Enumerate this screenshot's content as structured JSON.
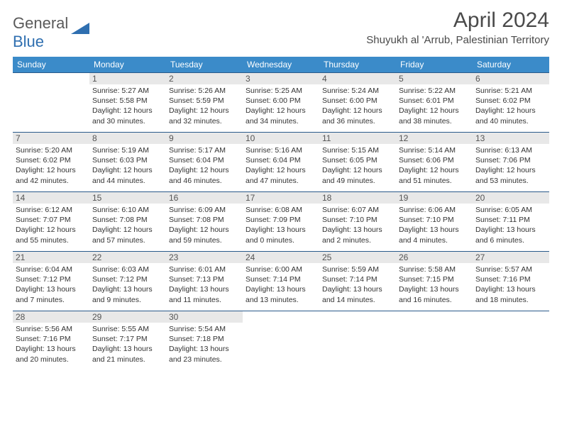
{
  "logo": {
    "word1": "General",
    "word2": "Blue"
  },
  "month_title": "April 2024",
  "location": "Shuyukh al 'Arrub, Palestinian Territory",
  "colors": {
    "header_bg": "#3b8bc9",
    "header_text": "#ffffff",
    "row_border": "#2a5a8a",
    "daynum_bg": "#e8e8e8",
    "daynum_text": "#555555",
    "cell_text": "#333333",
    "title_text": "#4a4a4a",
    "logo_gray": "#5a5a5a",
    "logo_blue": "#2f6fb0"
  },
  "day_headers": [
    "Sunday",
    "Monday",
    "Tuesday",
    "Wednesday",
    "Thursday",
    "Friday",
    "Saturday"
  ],
  "weeks": [
    [
      {
        "n": "",
        "sr": "",
        "ss": "",
        "dl1": "",
        "dl2": ""
      },
      {
        "n": "1",
        "sr": "Sunrise: 5:27 AM",
        "ss": "Sunset: 5:58 PM",
        "dl1": "Daylight: 12 hours",
        "dl2": "and 30 minutes."
      },
      {
        "n": "2",
        "sr": "Sunrise: 5:26 AM",
        "ss": "Sunset: 5:59 PM",
        "dl1": "Daylight: 12 hours",
        "dl2": "and 32 minutes."
      },
      {
        "n": "3",
        "sr": "Sunrise: 5:25 AM",
        "ss": "Sunset: 6:00 PM",
        "dl1": "Daylight: 12 hours",
        "dl2": "and 34 minutes."
      },
      {
        "n": "4",
        "sr": "Sunrise: 5:24 AM",
        "ss": "Sunset: 6:00 PM",
        "dl1": "Daylight: 12 hours",
        "dl2": "and 36 minutes."
      },
      {
        "n": "5",
        "sr": "Sunrise: 5:22 AM",
        "ss": "Sunset: 6:01 PM",
        "dl1": "Daylight: 12 hours",
        "dl2": "and 38 minutes."
      },
      {
        "n": "6",
        "sr": "Sunrise: 5:21 AM",
        "ss": "Sunset: 6:02 PM",
        "dl1": "Daylight: 12 hours",
        "dl2": "and 40 minutes."
      }
    ],
    [
      {
        "n": "7",
        "sr": "Sunrise: 5:20 AM",
        "ss": "Sunset: 6:02 PM",
        "dl1": "Daylight: 12 hours",
        "dl2": "and 42 minutes."
      },
      {
        "n": "8",
        "sr": "Sunrise: 5:19 AM",
        "ss": "Sunset: 6:03 PM",
        "dl1": "Daylight: 12 hours",
        "dl2": "and 44 minutes."
      },
      {
        "n": "9",
        "sr": "Sunrise: 5:17 AM",
        "ss": "Sunset: 6:04 PM",
        "dl1": "Daylight: 12 hours",
        "dl2": "and 46 minutes."
      },
      {
        "n": "10",
        "sr": "Sunrise: 5:16 AM",
        "ss": "Sunset: 6:04 PM",
        "dl1": "Daylight: 12 hours",
        "dl2": "and 47 minutes."
      },
      {
        "n": "11",
        "sr": "Sunrise: 5:15 AM",
        "ss": "Sunset: 6:05 PM",
        "dl1": "Daylight: 12 hours",
        "dl2": "and 49 minutes."
      },
      {
        "n": "12",
        "sr": "Sunrise: 5:14 AM",
        "ss": "Sunset: 6:06 PM",
        "dl1": "Daylight: 12 hours",
        "dl2": "and 51 minutes."
      },
      {
        "n": "13",
        "sr": "Sunrise: 6:13 AM",
        "ss": "Sunset: 7:06 PM",
        "dl1": "Daylight: 12 hours",
        "dl2": "and 53 minutes."
      }
    ],
    [
      {
        "n": "14",
        "sr": "Sunrise: 6:12 AM",
        "ss": "Sunset: 7:07 PM",
        "dl1": "Daylight: 12 hours",
        "dl2": "and 55 minutes."
      },
      {
        "n": "15",
        "sr": "Sunrise: 6:10 AM",
        "ss": "Sunset: 7:08 PM",
        "dl1": "Daylight: 12 hours",
        "dl2": "and 57 minutes."
      },
      {
        "n": "16",
        "sr": "Sunrise: 6:09 AM",
        "ss": "Sunset: 7:08 PM",
        "dl1": "Daylight: 12 hours",
        "dl2": "and 59 minutes."
      },
      {
        "n": "17",
        "sr": "Sunrise: 6:08 AM",
        "ss": "Sunset: 7:09 PM",
        "dl1": "Daylight: 13 hours",
        "dl2": "and 0 minutes."
      },
      {
        "n": "18",
        "sr": "Sunrise: 6:07 AM",
        "ss": "Sunset: 7:10 PM",
        "dl1": "Daylight: 13 hours",
        "dl2": "and 2 minutes."
      },
      {
        "n": "19",
        "sr": "Sunrise: 6:06 AM",
        "ss": "Sunset: 7:10 PM",
        "dl1": "Daylight: 13 hours",
        "dl2": "and 4 minutes."
      },
      {
        "n": "20",
        "sr": "Sunrise: 6:05 AM",
        "ss": "Sunset: 7:11 PM",
        "dl1": "Daylight: 13 hours",
        "dl2": "and 6 minutes."
      }
    ],
    [
      {
        "n": "21",
        "sr": "Sunrise: 6:04 AM",
        "ss": "Sunset: 7:12 PM",
        "dl1": "Daylight: 13 hours",
        "dl2": "and 7 minutes."
      },
      {
        "n": "22",
        "sr": "Sunrise: 6:03 AM",
        "ss": "Sunset: 7:12 PM",
        "dl1": "Daylight: 13 hours",
        "dl2": "and 9 minutes."
      },
      {
        "n": "23",
        "sr": "Sunrise: 6:01 AM",
        "ss": "Sunset: 7:13 PM",
        "dl1": "Daylight: 13 hours",
        "dl2": "and 11 minutes."
      },
      {
        "n": "24",
        "sr": "Sunrise: 6:00 AM",
        "ss": "Sunset: 7:14 PM",
        "dl1": "Daylight: 13 hours",
        "dl2": "and 13 minutes."
      },
      {
        "n": "25",
        "sr": "Sunrise: 5:59 AM",
        "ss": "Sunset: 7:14 PM",
        "dl1": "Daylight: 13 hours",
        "dl2": "and 14 minutes."
      },
      {
        "n": "26",
        "sr": "Sunrise: 5:58 AM",
        "ss": "Sunset: 7:15 PM",
        "dl1": "Daylight: 13 hours",
        "dl2": "and 16 minutes."
      },
      {
        "n": "27",
        "sr": "Sunrise: 5:57 AM",
        "ss": "Sunset: 7:16 PM",
        "dl1": "Daylight: 13 hours",
        "dl2": "and 18 minutes."
      }
    ],
    [
      {
        "n": "28",
        "sr": "Sunrise: 5:56 AM",
        "ss": "Sunset: 7:16 PM",
        "dl1": "Daylight: 13 hours",
        "dl2": "and 20 minutes."
      },
      {
        "n": "29",
        "sr": "Sunrise: 5:55 AM",
        "ss": "Sunset: 7:17 PM",
        "dl1": "Daylight: 13 hours",
        "dl2": "and 21 minutes."
      },
      {
        "n": "30",
        "sr": "Sunrise: 5:54 AM",
        "ss": "Sunset: 7:18 PM",
        "dl1": "Daylight: 13 hours",
        "dl2": "and 23 minutes."
      },
      {
        "n": "",
        "sr": "",
        "ss": "",
        "dl1": "",
        "dl2": ""
      },
      {
        "n": "",
        "sr": "",
        "ss": "",
        "dl1": "",
        "dl2": ""
      },
      {
        "n": "",
        "sr": "",
        "ss": "",
        "dl1": "",
        "dl2": ""
      },
      {
        "n": "",
        "sr": "",
        "ss": "",
        "dl1": "",
        "dl2": ""
      }
    ]
  ]
}
